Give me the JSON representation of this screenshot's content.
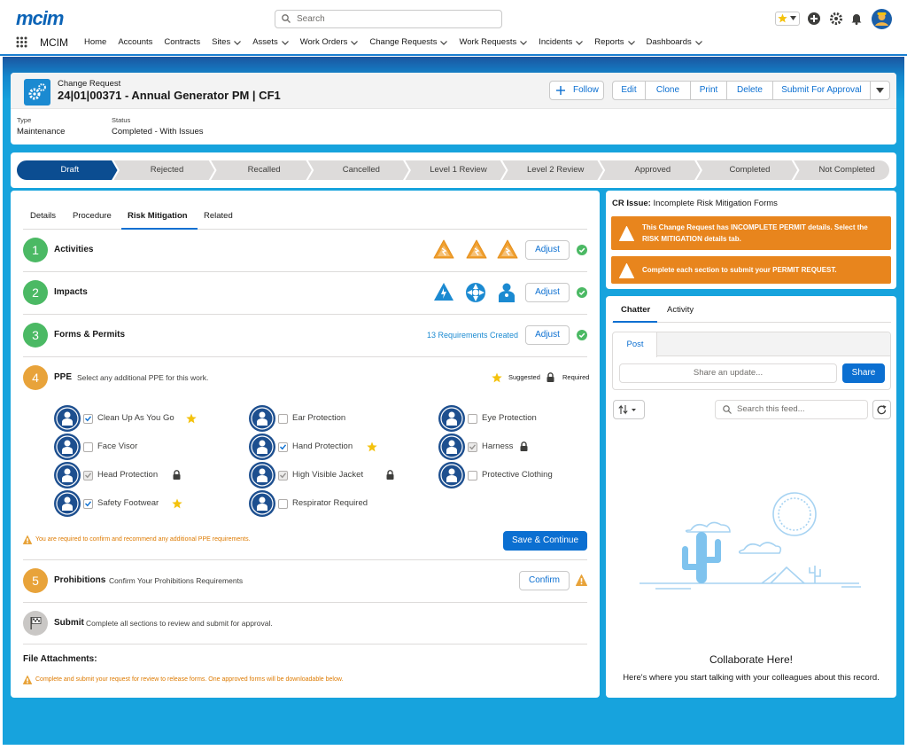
{
  "header": {
    "logo": "mcim",
    "search_placeholder": "Search",
    "app_name": "MCIM",
    "nav": [
      {
        "label": "Home"
      },
      {
        "label": "Accounts"
      },
      {
        "label": "Contracts"
      },
      {
        "label": "Sites",
        "menu": true
      },
      {
        "label": "Assets",
        "menu": true
      },
      {
        "label": "Work Orders",
        "menu": true
      },
      {
        "label": "Change Requests",
        "menu": true
      },
      {
        "label": "Work Requests",
        "menu": true
      },
      {
        "label": "Incidents",
        "menu": true
      },
      {
        "label": "Reports",
        "menu": true
      },
      {
        "label": "Dashboards",
        "menu": true
      }
    ]
  },
  "record": {
    "object": "Change Request",
    "title": "24|01|00371 - Annual Generator PM | CF1",
    "follow": "Follow",
    "actions": [
      "Edit",
      "Clone",
      "Print",
      "Delete",
      "Submit For Approval"
    ],
    "fields": [
      {
        "label": "Type",
        "value": "Maintenance"
      },
      {
        "label": "Status",
        "value": "Completed - With Issues"
      }
    ]
  },
  "path": [
    {
      "label": "Draft",
      "active": true
    },
    {
      "label": "Rejected"
    },
    {
      "label": "Recalled"
    },
    {
      "label": "Cancelled"
    },
    {
      "label": "Level 1 Review"
    },
    {
      "label": "Level 2 Review"
    },
    {
      "label": "Approved"
    },
    {
      "label": "Completed"
    },
    {
      "label": "Not Completed"
    }
  ],
  "tabs": [
    {
      "label": "Details"
    },
    {
      "label": "Procedure"
    },
    {
      "label": "Risk Mitigation",
      "active": true
    },
    {
      "label": "Related"
    }
  ],
  "steps": [
    {
      "number": 1,
      "title": "Activities",
      "button": "Adjust",
      "complete": true
    },
    {
      "number": 2,
      "title": "Impacts",
      "button": "Adjust",
      "complete": true
    },
    {
      "number": 3,
      "title": "Forms & Permits",
      "link": "13 Requirements Created",
      "button": "Adjust",
      "complete": true
    },
    {
      "number": 4,
      "title": "PPE",
      "subtitle": "Select any additional PPE for this work."
    },
    {
      "number": 5,
      "title": "Prohibitions",
      "subtitle": "Confirm Your Prohibitions Requirements",
      "button": "Confirm",
      "alert": true
    }
  ],
  "ppe": {
    "legend": {
      "suggested": "Suggested",
      "required": "Required"
    },
    "items": [
      {
        "label": "Clean Up As You Go",
        "checked": true,
        "marker": "suggested"
      },
      {
        "label": "Ear Protection",
        "checked": false
      },
      {
        "label": "Eye Protection",
        "checked": false
      },
      {
        "label": "Face Visor",
        "checked": false
      },
      {
        "label": "Hand Protection",
        "checked": true,
        "marker": "suggested"
      },
      {
        "label": "Harness",
        "checked": true,
        "marker": "required"
      },
      {
        "label": "Head Protection",
        "checked": true,
        "marker": "required"
      },
      {
        "label": "High Visible Jacket",
        "checked": true,
        "marker": "required"
      },
      {
        "label": "Protective Clothing",
        "checked": false
      },
      {
        "label": "Safety Footwear",
        "checked": true,
        "marker": "suggested"
      },
      {
        "label": "Respirator Required",
        "checked": false
      }
    ],
    "warning": "You are required to confirm and recommend any additional PPE requirements.",
    "button": "Save & Continue"
  },
  "submit": {
    "title": "Submit",
    "subtitle": "Complete all sections to review and submit for approval."
  },
  "files": {
    "title": "File Attachments:",
    "note": "Complete and submit your request for review to release forms. One approved forms will be downloadable below."
  },
  "issue": {
    "label": "CR Issue:",
    "title": "Incomplete Risk Mitigation Forms",
    "alerts": [
      "This Change Request has INCOMPLETE PERMIT details. Select the RISK MITIGATION details tab.",
      "Complete each section to submit your PERMIT REQUEST."
    ]
  },
  "chatter": {
    "tabs": [
      {
        "label": "Chatter",
        "active": true
      },
      {
        "label": "Activity"
      }
    ],
    "post_tab": "Post",
    "placeholder": "Share an update...",
    "share": "Share",
    "search": "Search this feed...",
    "empty_title": "Collaborate Here!",
    "empty_text": "Here's where you start talking with your colleagues about this record."
  }
}
